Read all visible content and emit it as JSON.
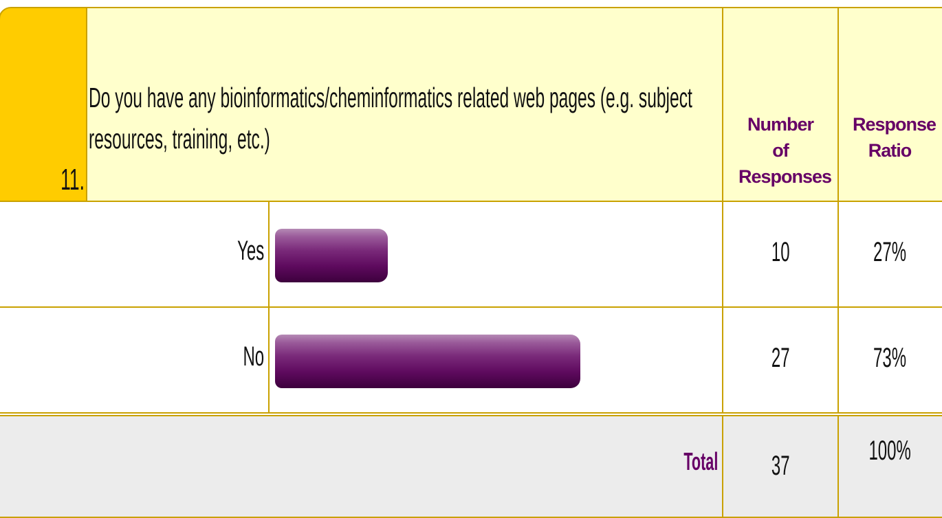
{
  "question": {
    "number": "11.",
    "text": "Do you have any bioinformatics/cheminformatics related web pages (e.g. subject resources, training, etc.)"
  },
  "headers": {
    "count": "Number of Responses",
    "ratio": "Response Ratio"
  },
  "rows": [
    {
      "label": "Yes",
      "count": 10,
      "ratio": 27,
      "ratio_label": "27%"
    },
    {
      "label": "No",
      "count": 27,
      "ratio": 73,
      "ratio_label": "73%"
    }
  ],
  "total": {
    "label": "Total",
    "count": 37,
    "ratio_label": "100%"
  }
}
